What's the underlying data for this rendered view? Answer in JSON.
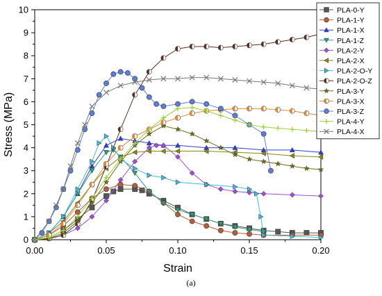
{
  "chart_data": {
    "type": "line",
    "xlabel": "Strain",
    "ylabel": "Stress (MPa)",
    "xlim": [
      0,
      0.2
    ],
    "ylim": [
      0,
      10
    ],
    "x_ticks": [
      "0.00",
      "0.05",
      "0.10",
      "0.15",
      "0.20"
    ],
    "y_ticks": [
      "0",
      "1",
      "2",
      "3",
      "4",
      "5",
      "6",
      "7",
      "8",
      "9",
      "10"
    ],
    "legend_position": "top-right",
    "grid": false,
    "series": [
      {
        "name": "PLA-0-Y",
        "color": "#555555",
        "marker": "square",
        "points": [
          [
            0,
            0
          ],
          [
            0.01,
            0.1
          ],
          [
            0.02,
            0.4
          ],
          [
            0.03,
            0.9
          ],
          [
            0.04,
            1.4
          ],
          [
            0.05,
            1.9
          ],
          [
            0.055,
            2.1
          ],
          [
            0.06,
            2.2
          ],
          [
            0.07,
            2.2
          ],
          [
            0.075,
            2.15
          ],
          [
            0.08,
            2.0
          ],
          [
            0.09,
            1.7
          ],
          [
            0.1,
            1.4
          ],
          [
            0.11,
            1.1
          ],
          [
            0.12,
            0.9
          ],
          [
            0.13,
            0.7
          ],
          [
            0.14,
            0.6
          ],
          [
            0.15,
            0.5
          ],
          [
            0.16,
            0.4
          ],
          [
            0.17,
            0.35
          ],
          [
            0.18,
            0.3
          ],
          [
            0.19,
            0.3
          ],
          [
            0.2,
            0.3
          ]
        ]
      },
      {
        "name": "PLA-1-Y",
        "color": "#b45f3a",
        "marker": "circle",
        "points": [
          [
            0,
            0
          ],
          [
            0.01,
            0.2
          ],
          [
            0.02,
            0.6
          ],
          [
            0.03,
            1.2
          ],
          [
            0.04,
            1.8
          ],
          [
            0.05,
            2.2
          ],
          [
            0.06,
            2.4
          ],
          [
            0.07,
            2.35
          ],
          [
            0.08,
            2.1
          ],
          [
            0.09,
            1.6
          ],
          [
            0.1,
            1.1
          ],
          [
            0.11,
            0.8
          ],
          [
            0.12,
            0.6
          ],
          [
            0.13,
            0.4
          ],
          [
            0.14,
            0.3
          ],
          [
            0.15,
            0.25
          ],
          [
            0.16,
            0.2
          ],
          [
            0.18,
            0.2
          ],
          [
            0.2,
            0.2
          ]
        ]
      },
      {
        "name": "PLA-1-X",
        "color": "#2e3fd9",
        "marker": "triangle-up",
        "points": [
          [
            0,
            0
          ],
          [
            0.01,
            0.3
          ],
          [
            0.02,
            1.0
          ],
          [
            0.03,
            2.0
          ],
          [
            0.04,
            3.2
          ],
          [
            0.05,
            4.1
          ],
          [
            0.06,
            4.4
          ],
          [
            0.07,
            4.3
          ],
          [
            0.08,
            4.2
          ],
          [
            0.09,
            4.1
          ],
          [
            0.1,
            4.1
          ],
          [
            0.12,
            4.0
          ],
          [
            0.14,
            4.0
          ],
          [
            0.16,
            3.9
          ],
          [
            0.18,
            3.9
          ],
          [
            0.2,
            3.8
          ]
        ]
      },
      {
        "name": "PLA-1-Z",
        "color": "#2e9e7e",
        "marker": "triangle-down",
        "points": [
          [
            0,
            0
          ],
          [
            0.01,
            0.3
          ],
          [
            0.02,
            1.0
          ],
          [
            0.03,
            2.0
          ],
          [
            0.04,
            3.0
          ],
          [
            0.05,
            3.8
          ],
          [
            0.055,
            3.9
          ],
          [
            0.06,
            3.6
          ],
          [
            0.07,
            2.9
          ],
          [
            0.08,
            2.1
          ],
          [
            0.09,
            1.6
          ],
          [
            0.1,
            1.3
          ],
          [
            0.11,
            1.1
          ],
          [
            0.12,
            0.9
          ],
          [
            0.13,
            0.7
          ],
          [
            0.14,
            0.55
          ],
          [
            0.15,
            0.45
          ],
          [
            0.16,
            0.35
          ]
        ]
      },
      {
        "name": "PLA-2-Y",
        "color": "#9a4fd6",
        "marker": "diamond",
        "points": [
          [
            0,
            0
          ],
          [
            0.01,
            0.05
          ],
          [
            0.02,
            0.2
          ],
          [
            0.03,
            0.5
          ],
          [
            0.04,
            1.0
          ],
          [
            0.05,
            1.7
          ],
          [
            0.06,
            2.6
          ],
          [
            0.07,
            3.4
          ],
          [
            0.08,
            4.0
          ],
          [
            0.085,
            4.1
          ],
          [
            0.09,
            4.1
          ],
          [
            0.1,
            3.6
          ],
          [
            0.11,
            2.9
          ],
          [
            0.12,
            2.4
          ],
          [
            0.13,
            2.2
          ],
          [
            0.14,
            2.1
          ],
          [
            0.15,
            2.05
          ],
          [
            0.16,
            2.0
          ],
          [
            0.18,
            1.95
          ],
          [
            0.2,
            1.9
          ]
        ]
      },
      {
        "name": "PLA-2-X",
        "color": "#8a8a10",
        "marker": "triangle-left",
        "points": [
          [
            0,
            0
          ],
          [
            0.01,
            0.3
          ],
          [
            0.02,
            0.8
          ],
          [
            0.03,
            1.6
          ],
          [
            0.04,
            2.4
          ],
          [
            0.05,
            3.1
          ],
          [
            0.06,
            3.6
          ],
          [
            0.07,
            3.8
          ],
          [
            0.08,
            3.85
          ],
          [
            0.09,
            3.85
          ],
          [
            0.1,
            3.85
          ],
          [
            0.12,
            3.85
          ],
          [
            0.14,
            3.8
          ],
          [
            0.16,
            3.75
          ],
          [
            0.18,
            3.65
          ],
          [
            0.2,
            3.6
          ]
        ]
      },
      {
        "name": "PLA-2-O-Y",
        "color": "#3fb9d6",
        "marker": "triangle-right",
        "points": [
          [
            0,
            0
          ],
          [
            0.01,
            0.3
          ],
          [
            0.02,
            1.0
          ],
          [
            0.03,
            2.2
          ],
          [
            0.04,
            3.4
          ],
          [
            0.045,
            4.2
          ],
          [
            0.05,
            4.5
          ],
          [
            0.055,
            4.0
          ],
          [
            0.06,
            3.5
          ],
          [
            0.07,
            3.1
          ],
          [
            0.08,
            2.8
          ],
          [
            0.09,
            2.7
          ],
          [
            0.1,
            2.5
          ],
          [
            0.12,
            2.4
          ],
          [
            0.14,
            2.3
          ],
          [
            0.15,
            2.2
          ],
          [
            0.155,
            2.0
          ],
          [
            0.158,
            1.0
          ],
          [
            0.16,
            0.2
          ],
          [
            0.18,
            0.15
          ],
          [
            0.2,
            0.1
          ]
        ]
      },
      {
        "name": "PLA-2-O-Z",
        "color": "#5a2e20",
        "marker": "half-circle",
        "points": [
          [
            0,
            0
          ],
          [
            0.01,
            0.05
          ],
          [
            0.02,
            0.2
          ],
          [
            0.03,
            0.7
          ],
          [
            0.04,
            1.7
          ],
          [
            0.05,
            3.2
          ],
          [
            0.06,
            4.8
          ],
          [
            0.07,
            6.3
          ],
          [
            0.08,
            7.3
          ],
          [
            0.09,
            7.9
          ],
          [
            0.1,
            8.3
          ],
          [
            0.11,
            8.4
          ],
          [
            0.12,
            8.4
          ],
          [
            0.13,
            8.35
          ],
          [
            0.14,
            8.4
          ],
          [
            0.15,
            8.45
          ],
          [
            0.16,
            8.5
          ],
          [
            0.17,
            8.6
          ],
          [
            0.18,
            8.7
          ],
          [
            0.19,
            8.8
          ],
          [
            0.2,
            8.95
          ]
        ]
      },
      {
        "name": "PLA-3-Y",
        "color": "#6e6e10",
        "marker": "star",
        "points": [
          [
            0,
            0
          ],
          [
            0.01,
            0.05
          ],
          [
            0.02,
            0.3
          ],
          [
            0.03,
            0.8
          ],
          [
            0.04,
            1.6
          ],
          [
            0.05,
            2.5
          ],
          [
            0.06,
            3.4
          ],
          [
            0.07,
            4.1
          ],
          [
            0.08,
            4.6
          ],
          [
            0.09,
            4.95
          ],
          [
            0.1,
            4.8
          ],
          [
            0.11,
            4.6
          ],
          [
            0.12,
            4.3
          ],
          [
            0.13,
            4.0
          ],
          [
            0.14,
            3.7
          ],
          [
            0.15,
            3.5
          ],
          [
            0.16,
            3.4
          ],
          [
            0.17,
            3.3
          ],
          [
            0.18,
            3.2
          ],
          [
            0.19,
            3.1
          ],
          [
            0.2,
            3.05
          ]
        ]
      },
      {
        "name": "PLA-3-X",
        "color": "#e8892e",
        "marker": "half-circle",
        "points": [
          [
            0,
            0
          ],
          [
            0.01,
            0.2
          ],
          [
            0.02,
            0.7
          ],
          [
            0.03,
            1.5
          ],
          [
            0.04,
            2.4
          ],
          [
            0.05,
            3.3
          ],
          [
            0.06,
            4.0
          ],
          [
            0.07,
            4.5
          ],
          [
            0.08,
            4.8
          ],
          [
            0.09,
            5.1
          ],
          [
            0.1,
            5.3
          ],
          [
            0.11,
            5.5
          ],
          [
            0.12,
            5.6
          ],
          [
            0.13,
            5.65
          ],
          [
            0.14,
            5.7
          ],
          [
            0.15,
            5.7
          ],
          [
            0.16,
            5.7
          ],
          [
            0.17,
            5.65
          ],
          [
            0.18,
            5.6
          ],
          [
            0.19,
            5.5
          ],
          [
            0.2,
            5.4
          ]
        ]
      },
      {
        "name": "PLA-3-Z",
        "color": "#5b7fd9",
        "marker": "circle",
        "points": [
          [
            0,
            0
          ],
          [
            0.005,
            0.3
          ],
          [
            0.01,
            0.8
          ],
          [
            0.015,
            1.4
          ],
          [
            0.02,
            2.2
          ],
          [
            0.025,
            3.0
          ],
          [
            0.03,
            3.9
          ],
          [
            0.035,
            4.8
          ],
          [
            0.04,
            5.5
          ],
          [
            0.045,
            6.3
          ],
          [
            0.05,
            6.8
          ],
          [
            0.055,
            7.2
          ],
          [
            0.06,
            7.3
          ],
          [
            0.065,
            7.25
          ],
          [
            0.07,
            7.0
          ],
          [
            0.075,
            6.6
          ],
          [
            0.08,
            6.2
          ],
          [
            0.085,
            5.9
          ],
          [
            0.09,
            5.8
          ],
          [
            0.1,
            5.9
          ],
          [
            0.11,
            6.0
          ],
          [
            0.12,
            5.9
          ],
          [
            0.13,
            5.7
          ],
          [
            0.14,
            5.4
          ],
          [
            0.15,
            5.0
          ],
          [
            0.16,
            4.6
          ],
          [
            0.165,
            3.0
          ]
        ]
      },
      {
        "name": "PLA-4-Y",
        "color": "#9ccf3a",
        "marker": "plus",
        "points": [
          [
            0,
            0
          ],
          [
            0.01,
            0.1
          ],
          [
            0.02,
            0.4
          ],
          [
            0.03,
            1.0
          ],
          [
            0.04,
            1.8
          ],
          [
            0.05,
            2.7
          ],
          [
            0.06,
            3.5
          ],
          [
            0.07,
            4.2
          ],
          [
            0.08,
            4.8
          ],
          [
            0.09,
            5.3
          ],
          [
            0.1,
            5.7
          ],
          [
            0.11,
            5.75
          ],
          [
            0.12,
            5.6
          ],
          [
            0.13,
            5.4
          ],
          [
            0.14,
            5.2
          ],
          [
            0.15,
            5.0
          ],
          [
            0.16,
            4.9
          ],
          [
            0.17,
            4.85
          ],
          [
            0.18,
            4.8
          ],
          [
            0.19,
            4.75
          ],
          [
            0.2,
            4.7
          ]
        ]
      },
      {
        "name": "PLA-4-X",
        "color": "#777777",
        "marker": "x",
        "points": [
          [
            0,
            0
          ],
          [
            0.01,
            0.8
          ],
          [
            0.015,
            1.5
          ],
          [
            0.02,
            2.2
          ],
          [
            0.025,
            3.2
          ],
          [
            0.03,
            4.2
          ],
          [
            0.035,
            5.0
          ],
          [
            0.04,
            5.8
          ],
          [
            0.05,
            6.4
          ],
          [
            0.06,
            6.7
          ],
          [
            0.07,
            6.85
          ],
          [
            0.08,
            6.95
          ],
          [
            0.09,
            7.0
          ],
          [
            0.1,
            7.0
          ],
          [
            0.11,
            7.05
          ],
          [
            0.12,
            7.05
          ],
          [
            0.13,
            7.0
          ],
          [
            0.14,
            6.95
          ],
          [
            0.15,
            6.9
          ],
          [
            0.16,
            6.85
          ],
          [
            0.17,
            6.8
          ],
          [
            0.18,
            6.7
          ],
          [
            0.19,
            6.6
          ],
          [
            0.2,
            6.55
          ]
        ]
      }
    ]
  },
  "caption": "(a)"
}
